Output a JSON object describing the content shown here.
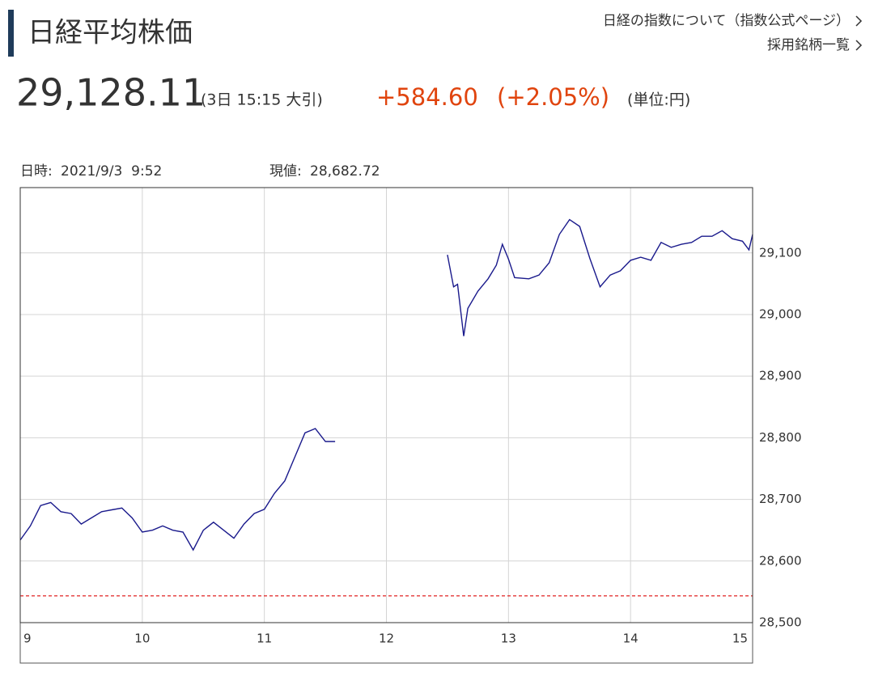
{
  "header": {
    "title": "日経平均株価",
    "links": [
      "日経の指数について（指数公式ページ）",
      "採用銘柄一覧"
    ]
  },
  "quote": {
    "price": "29,128.11",
    "time": "(3日 15:15 大引)",
    "change": "+584.60",
    "change_pct": "(+2.05%)",
    "unit": "(単位:円)"
  },
  "chart_data": {
    "type": "line",
    "info": {
      "date_label": "日時:",
      "date": "2021/9/3  9:52",
      "value_label": "現値:",
      "value": "28,682.72"
    },
    "x": [
      9,
      9.083,
      9.167,
      9.25,
      9.333,
      9.417,
      9.5,
      9.583,
      9.667,
      9.75,
      9.833,
      9.917,
      10,
      10.083,
      10.167,
      10.25,
      10.333,
      10.417,
      10.5,
      10.583,
      10.667,
      10.75,
      10.833,
      10.917,
      11,
      11.083,
      11.167,
      11.25,
      11.333,
      11.417,
      11.5,
      11.58,
      12,
      12.5,
      12.55,
      12.583,
      12.633,
      12.667,
      12.75,
      12.833,
      12.9,
      12.95,
      13,
      13.05,
      13.167,
      13.25,
      13.333,
      13.417,
      13.5,
      13.583,
      13.667,
      13.75,
      13.833,
      13.917,
      14,
      14.083,
      14.167,
      14.25,
      14.333,
      14.417,
      14.5,
      14.583,
      14.667,
      14.75,
      14.833,
      14.917,
      14.97,
      15
    ],
    "series": [
      {
        "color": "#1a1a8c",
        "values": [
          28634,
          28657,
          28690,
          28695,
          28680,
          28677,
          28660,
          28670,
          28680,
          28683,
          28686,
          28670,
          28647,
          28650,
          28657,
          28650,
          28647,
          28618,
          28650,
          28663,
          28650,
          28637,
          28660,
          28677,
          28684,
          28710,
          28730,
          28769,
          28808,
          28815,
          28794,
          28794,
          null,
          29097,
          29045,
          29049,
          28965,
          29010,
          29038,
          29058,
          29080,
          29114,
          29090,
          29060,
          29058,
          29064,
          29084,
          29130,
          29154,
          29143,
          29091,
          29045,
          29064,
          29071,
          29088,
          29093,
          29088,
          29117,
          29109,
          29114,
          29117,
          29127,
          29127,
          29136,
          29123,
          29119,
          29105,
          29130
        ]
      }
    ],
    "prev_close": 28543.51,
    "prev_close_color": "#e02020",
    "xlim": [
      9,
      15
    ],
    "xticks": [
      9,
      10,
      11,
      12,
      13,
      14,
      15
    ],
    "ylim": [
      28500,
      29206
    ],
    "yticks": [
      {
        "value": 28500,
        "label": "28,500"
      },
      {
        "value": 28600,
        "label": "28,600"
      },
      {
        "value": 28700,
        "label": "28,700"
      },
      {
        "value": 28800,
        "label": "28,800"
      },
      {
        "value": 28900,
        "label": "28,900"
      },
      {
        "value": 29000,
        "label": "29,000"
      },
      {
        "value": 29100,
        "label": "29,100"
      }
    ],
    "grid": true
  }
}
